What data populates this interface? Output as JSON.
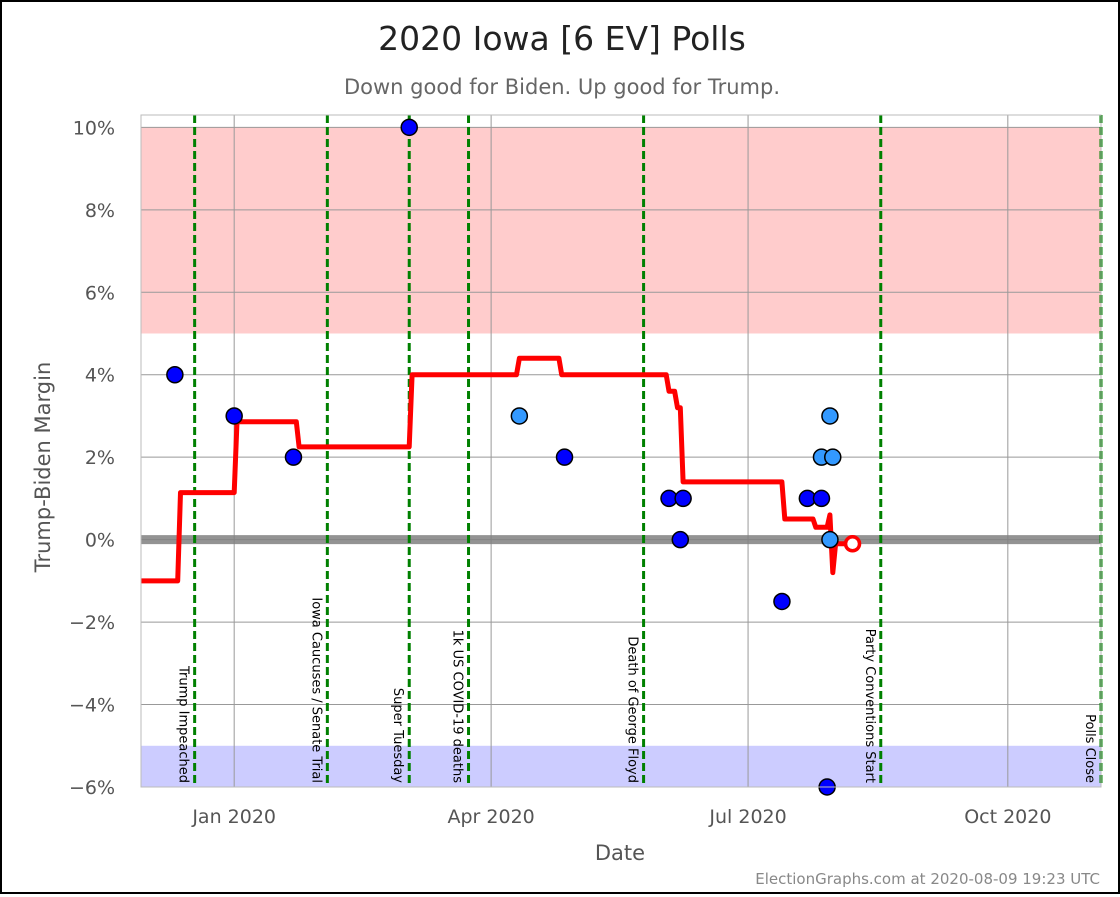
{
  "chart_data": {
    "type": "scatter",
    "title": "2020 Iowa [6 EV] Polls",
    "subtitle": "Down good for Biden. Up good for Trump.",
    "xlabel": "Date",
    "ylabel": "Trump-Biden Margin",
    "footer": "ElectionGraphs.com at 2020-08-09 19:23 UTC",
    "xlim": [
      "2019-11-29",
      "2020-11-03"
    ],
    "ylim": [
      -6,
      10.3
    ],
    "x_ticks": [
      {
        "date": "2020-01-01",
        "label": "Jan 2020"
      },
      {
        "date": "2020-04-01",
        "label": "Apr 2020"
      },
      {
        "date": "2020-07-01",
        "label": "Jul 2020"
      },
      {
        "date": "2020-10-01",
        "label": "Oct 2020"
      }
    ],
    "y_ticks": [
      {
        "value": 10,
        "label": "10%"
      },
      {
        "value": 8,
        "label": "8%"
      },
      {
        "value": 6,
        "label": "6%"
      },
      {
        "value": 4,
        "label": "4%"
      },
      {
        "value": 2,
        "label": "2%"
      },
      {
        "value": 0,
        "label": "0%"
      },
      {
        "value": -2,
        "label": "−2%"
      },
      {
        "value": -4,
        "label": "−4%"
      },
      {
        "value": -6,
        "label": "−6%"
      }
    ],
    "bands": [
      {
        "from": 5,
        "to": 10,
        "color": "#ffcccc"
      },
      {
        "from": -6,
        "to": -5,
        "color": "#ccccff"
      }
    ],
    "events": [
      {
        "date": "2019-12-18",
        "label": "Trump Impeached"
      },
      {
        "date": "2020-02-03",
        "label": "Iowa Caucuses / Senate Trial"
      },
      {
        "date": "2020-03-03",
        "label": "Super Tuesday"
      },
      {
        "date": "2020-03-24",
        "label": "1k US COVID-19 deaths"
      },
      {
        "date": "2020-05-25",
        "label": "Death of George Floyd"
      },
      {
        "date": "2020-08-17",
        "label": "Party Conventions Start"
      },
      {
        "date": "2020-11-03",
        "label": "Polls Close"
      }
    ],
    "average_series": [
      {
        "date": "2019-11-29",
        "value": -1.0
      },
      {
        "date": "2019-12-12",
        "value": -1.0
      },
      {
        "date": "2019-12-13",
        "value": 1.14
      },
      {
        "date": "2020-01-01",
        "value": 1.14
      },
      {
        "date": "2020-01-02",
        "value": 2.86
      },
      {
        "date": "2020-01-23",
        "value": 2.86
      },
      {
        "date": "2020-01-24",
        "value": 2.25
      },
      {
        "date": "2020-03-03",
        "value": 2.25
      },
      {
        "date": "2020-03-04",
        "value": 4.0
      },
      {
        "date": "2020-04-10",
        "value": 4.0
      },
      {
        "date": "2020-04-11",
        "value": 4.4
      },
      {
        "date": "2020-04-25",
        "value": 4.4
      },
      {
        "date": "2020-04-26",
        "value": 4.0
      },
      {
        "date": "2020-06-02",
        "value": 4.0
      },
      {
        "date": "2020-06-03",
        "value": 3.6
      },
      {
        "date": "2020-06-05",
        "value": 3.6
      },
      {
        "date": "2020-06-06",
        "value": 3.2
      },
      {
        "date": "2020-06-07",
        "value": 3.2
      },
      {
        "date": "2020-06-08",
        "value": 1.4
      },
      {
        "date": "2020-07-13",
        "value": 1.4
      },
      {
        "date": "2020-07-14",
        "value": 0.5
      },
      {
        "date": "2020-07-24",
        "value": 0.5
      },
      {
        "date": "2020-07-25",
        "value": 0.3
      },
      {
        "date": "2020-07-29",
        "value": 0.3
      },
      {
        "date": "2020-07-30",
        "value": 0.6
      },
      {
        "date": "2020-07-31",
        "value": -0.8
      },
      {
        "date": "2020-08-01",
        "value": -0.1
      },
      {
        "date": "2020-08-07",
        "value": -0.1
      }
    ],
    "polls": [
      {
        "date": "2019-12-11",
        "value": 4,
        "color": "#0000ff"
      },
      {
        "date": "2020-01-01",
        "value": 3,
        "color": "#0000ff"
      },
      {
        "date": "2020-01-22",
        "value": 2,
        "color": "#0000ff"
      },
      {
        "date": "2020-03-03",
        "value": 10,
        "color": "#0000ff"
      },
      {
        "date": "2020-04-11",
        "value": 3,
        "color": "#3399ff"
      },
      {
        "date": "2020-04-27",
        "value": 2,
        "color": "#0000ff"
      },
      {
        "date": "2020-06-03",
        "value": 1,
        "color": "#0000ff"
      },
      {
        "date": "2020-06-07",
        "value": 0,
        "color": "#0000ff"
      },
      {
        "date": "2020-06-08",
        "value": 1,
        "color": "#0000ff"
      },
      {
        "date": "2020-07-13",
        "value": -1.5,
        "color": "#0000ff"
      },
      {
        "date": "2020-07-22",
        "value": 1,
        "color": "#0000ff"
      },
      {
        "date": "2020-07-27",
        "value": 1,
        "color": "#0000ff"
      },
      {
        "date": "2020-07-27",
        "value": 2,
        "color": "#3399ff"
      },
      {
        "date": "2020-07-29",
        "value": -6,
        "color": "#0000ff"
      },
      {
        "date": "2020-07-30",
        "value": 3,
        "color": "#3399ff"
      },
      {
        "date": "2020-07-30",
        "value": 0,
        "color": "#3399ff"
      },
      {
        "date": "2020-07-31",
        "value": 2,
        "color": "#3399ff"
      }
    ],
    "current_marker": {
      "date": "2020-08-07",
      "value": -0.1
    },
    "colors": {
      "average_line": "#ff0000",
      "event_line": "#008000",
      "zero_line": "#808080",
      "grid": "#999999",
      "text": "#444444"
    }
  }
}
